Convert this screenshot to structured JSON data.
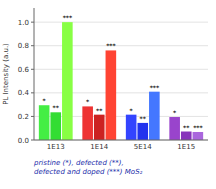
{
  "chart_data": {
    "type": "bar",
    "categories": [
      "1E13",
      "1E14",
      "5E14",
      "1E15"
    ],
    "series": [
      {
        "name": "*",
        "colors": [
          "#44ee44",
          "#ee3333",
          "#3344ff",
          "#9944cc"
        ],
        "values": [
          0.295,
          0.285,
          0.215,
          0.195
        ]
      },
      {
        "name": "**",
        "colors": [
          "#33dd33",
          "#cc2222",
          "#2233ee",
          "#8833bb"
        ],
        "values": [
          0.235,
          0.215,
          0.145,
          0.072
        ]
      },
      {
        "name": "***",
        "colors": [
          "#88ff44",
          "#ff4433",
          "#4477ff",
          "#aa66dd"
        ],
        "values": [
          1.0,
          0.76,
          0.41,
          0.068
        ]
      }
    ],
    "ylabel": "PL Intensity (a.u.)",
    "annotations": [
      "pristine (*), defected (**),\ndefected and doped (***) MoS₂"
    ],
    "ylim": [
      0,
      1.12
    ],
    "yticks": [
      {
        "value": 0.0,
        "label": "0.0"
      },
      0.2,
      0.4,
      0.6,
      0.8,
      {
        "value": 1.0,
        "label": "1.0"
      }
    ]
  }
}
